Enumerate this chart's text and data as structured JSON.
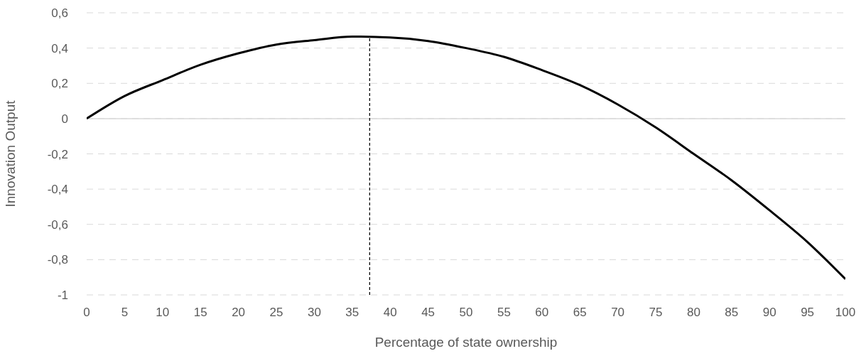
{
  "chart_data": {
    "type": "line",
    "xlabel": "Percentage of state ownership",
    "ylabel": "Innovation Output",
    "x": [
      0,
      5,
      10,
      15,
      20,
      25,
      30,
      35,
      40,
      45,
      50,
      55,
      60,
      65,
      70,
      75,
      80,
      85,
      90,
      95,
      100
    ],
    "series": [
      {
        "color": "#000000",
        "values": [
          0,
          0.128,
          0.218,
          0.305,
          0.37,
          0.42,
          0.445,
          0.465,
          0.46,
          0.44,
          0.4,
          0.35,
          0.275,
          0.19,
          0.08,
          -0.05,
          -0.2,
          -0.35,
          -0.52,
          -0.7,
          -0.91
        ]
      },
      {
        "color": "#000000",
        "x": [
          37.3,
          37.3
        ],
        "values": [
          -1,
          0.465
        ],
        "line_style": "dashed"
      }
    ],
    "xlim": [
      0,
      100
    ],
    "xticks": [
      0,
      5,
      10,
      15,
      20,
      25,
      30,
      35,
      40,
      45,
      50,
      55,
      60,
      65,
      70,
      75,
      80,
      85,
      90,
      95,
      100
    ],
    "ylim": [
      -1,
      0.6
    ],
    "yticks": [
      {
        "value": -1,
        "label": "-1"
      },
      {
        "value": -0.8,
        "label": "-0,8"
      },
      {
        "value": -0.6,
        "label": "-0,6"
      },
      {
        "value": -0.4,
        "label": "-0,4"
      },
      {
        "value": -0.2,
        "label": "-0,2"
      },
      {
        "value": 0,
        "label": "0"
      },
      {
        "value": 0.2,
        "label": "0,2"
      },
      {
        "value": 0.4,
        "label": "0,4"
      },
      {
        "value": 0.6,
        "label": "0,6"
      }
    ],
    "ref_lines": [
      {
        "axis": "y",
        "value": 0,
        "color": "#d9d9d9"
      }
    ],
    "grid": "y",
    "marker": "none",
    "line_style": "solid"
  }
}
